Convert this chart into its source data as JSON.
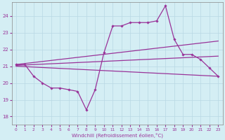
{
  "xlabel": "Windchill (Refroidissement éolien,°C)",
  "ylabel": "",
  "background_color": "#d4eef4",
  "grid_color": "#b8d8e4",
  "line_color": "#993399",
  "xlim": [
    -0.5,
    23.5
  ],
  "ylim": [
    17.5,
    24.8
  ],
  "yticks": [
    18,
    19,
    20,
    21,
    22,
    23,
    24
  ],
  "xticks": [
    0,
    1,
    2,
    3,
    4,
    5,
    6,
    7,
    8,
    9,
    10,
    11,
    12,
    13,
    14,
    15,
    16,
    17,
    18,
    19,
    20,
    21,
    22,
    23
  ],
  "lines": [
    {
      "x": [
        0,
        1,
        2,
        3,
        4,
        5,
        6,
        7,
        8,
        9,
        10,
        11,
        12,
        13,
        14,
        15,
        16,
        17,
        18,
        19,
        20,
        21,
        22,
        23
      ],
      "y": [
        21.1,
        21.1,
        20.4,
        20.0,
        19.7,
        19.7,
        19.6,
        19.5,
        18.4,
        19.6,
        21.8,
        23.4,
        23.4,
        23.6,
        23.6,
        23.6,
        23.7,
        24.6,
        22.6,
        21.7,
        21.7,
        21.4,
        20.9,
        20.4
      ],
      "marker": "D",
      "markersize": 1.8,
      "linewidth": 0.9,
      "has_marker": true
    },
    {
      "x": [
        0,
        23
      ],
      "y": [
        21.1,
        22.5
      ],
      "marker": null,
      "markersize": 0,
      "linewidth": 0.9,
      "has_marker": false
    },
    {
      "x": [
        0,
        23
      ],
      "y": [
        21.05,
        21.6
      ],
      "marker": null,
      "markersize": 0,
      "linewidth": 0.9,
      "has_marker": false
    },
    {
      "x": [
        0,
        23
      ],
      "y": [
        21.0,
        20.4
      ],
      "marker": null,
      "markersize": 0,
      "linewidth": 0.9,
      "has_marker": false
    }
  ]
}
